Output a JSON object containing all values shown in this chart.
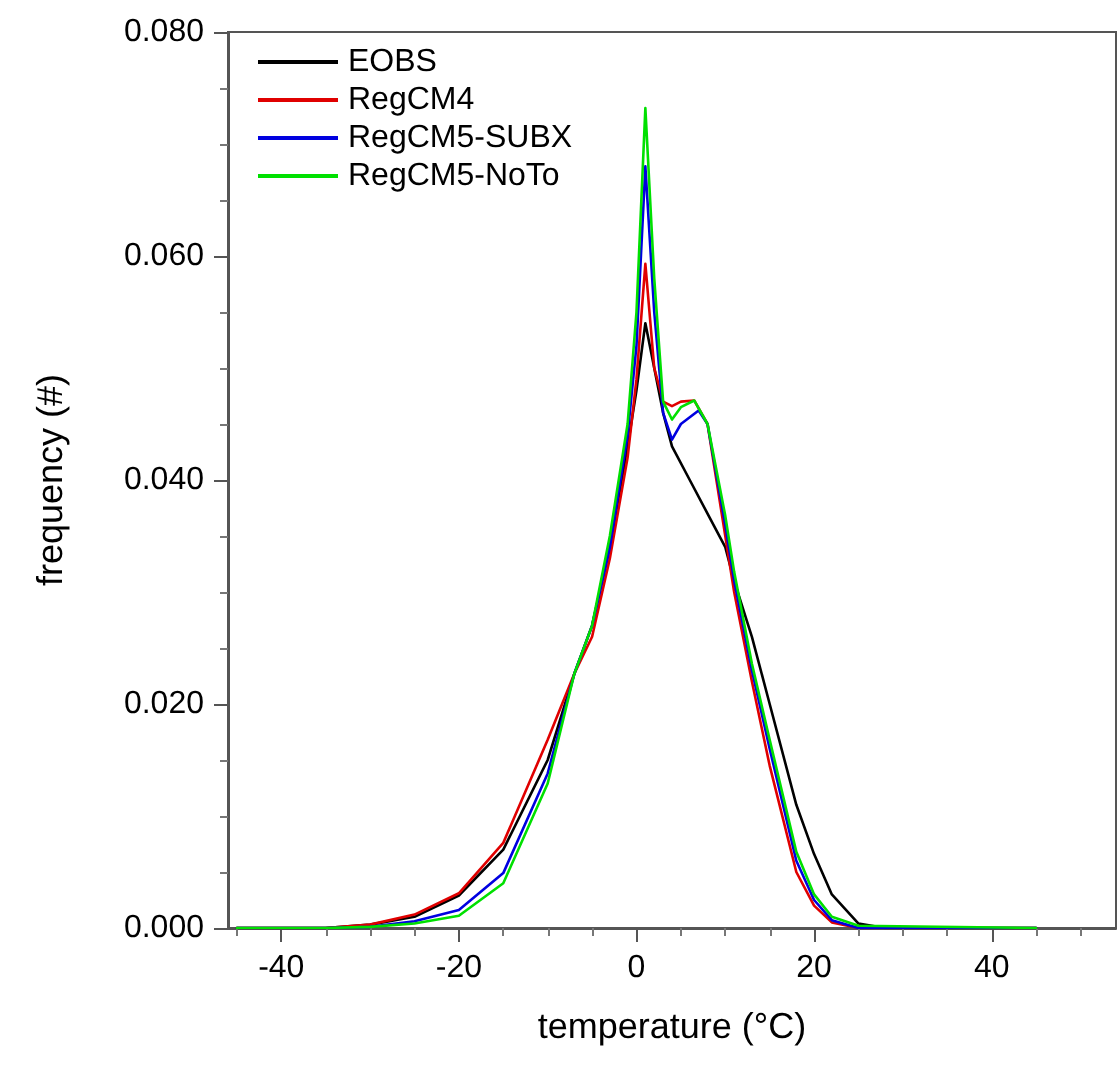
{
  "chart_data": {
    "type": "line",
    "xlabel": "temperature (°C)",
    "ylabel": "frequency (#)",
    "xlim": [
      -46,
      54
    ],
    "xticks": [
      -40,
      -20,
      0,
      20,
      40
    ],
    "ylim": [
      0,
      0.08
    ],
    "yticks": [
      {
        "value": 0,
        "label": "0.000"
      },
      {
        "value": 0.02,
        "label": "0.020"
      },
      {
        "value": 0.04,
        "label": "0.040"
      },
      {
        "value": 0.06,
        "label": "0.060"
      },
      {
        "value": 0.08,
        "label": "0.080"
      }
    ],
    "grid": false,
    "legend": "top left",
    "marker": "none",
    "line_style": "solid",
    "series": [
      {
        "name": "EOBS",
        "color": "#000000",
        "x": [
          -45,
          -35,
          -30,
          -25,
          -20,
          -15,
          -10,
          -7,
          -5,
          -3,
          -1,
          0,
          1,
          2,
          3,
          4,
          6,
          8,
          10,
          11,
          13,
          15,
          18,
          20,
          22,
          25,
          28,
          45
        ],
        "values": [
          0,
          0,
          0.0003,
          0.001,
          0.0029,
          0.007,
          0.015,
          0.0227,
          0.027,
          0.034,
          0.043,
          0.048,
          0.054,
          0.05,
          0.046,
          0.043,
          0.04,
          0.037,
          0.034,
          0.031,
          0.026,
          0.02,
          0.011,
          0.0066,
          0.003,
          0.0004,
          0,
          0
        ]
      },
      {
        "name": "RegCM4",
        "color": "#e00000",
        "x": [
          -45,
          -35,
          -30,
          -25,
          -20,
          -15,
          -10,
          -7,
          -5,
          -3,
          -1,
          0,
          1,
          2,
          3,
          4,
          5,
          6.5,
          8,
          10,
          11,
          13,
          15,
          18,
          20,
          22,
          25,
          45
        ],
        "values": [
          0,
          0,
          0.0003,
          0.0012,
          0.0031,
          0.0076,
          0.0168,
          0.0227,
          0.026,
          0.033,
          0.042,
          0.049,
          0.0593,
          0.05,
          0.047,
          0.0466,
          0.047,
          0.0471,
          0.045,
          0.035,
          0.03,
          0.022,
          0.0145,
          0.005,
          0.002,
          0.0005,
          0,
          0
        ]
      },
      {
        "name": "RegCM5-SUBX",
        "color": "#0000e0",
        "x": [
          -45,
          -35,
          -30,
          -25,
          -20,
          -15,
          -10,
          -7,
          -5,
          -3,
          -1,
          0,
          1,
          2,
          3,
          4,
          5,
          7,
          8,
          10,
          11,
          13,
          15,
          18,
          20,
          22,
          25,
          45
        ],
        "values": [
          0,
          0,
          0.0001,
          0.0006,
          0.0016,
          0.0049,
          0.0138,
          0.0227,
          0.027,
          0.034,
          0.044,
          0.052,
          0.068,
          0.055,
          0.046,
          0.0436,
          0.045,
          0.0462,
          0.045,
          0.036,
          0.031,
          0.023,
          0.016,
          0.006,
          0.0025,
          0.0007,
          0,
          0
        ]
      },
      {
        "name": "RegCM5-NoTo",
        "color": "#00e000",
        "x": [
          -45,
          -35,
          -30,
          -25,
          -20,
          -15,
          -10,
          -7,
          -5,
          -3,
          -1,
          0,
          1,
          2,
          3,
          4,
          5,
          6.5,
          8,
          10,
          11,
          13,
          15,
          18,
          20,
          22,
          25,
          45
        ],
        "values": [
          0,
          0,
          0.0001,
          0.0004,
          0.0011,
          0.004,
          0.0129,
          0.0227,
          0.027,
          0.035,
          0.045,
          0.055,
          0.0732,
          0.058,
          0.047,
          0.0454,
          0.0465,
          0.0471,
          0.045,
          0.0368,
          0.0318,
          0.0236,
          0.0168,
          0.0068,
          0.003,
          0.001,
          0.0002,
          0
        ]
      }
    ]
  }
}
